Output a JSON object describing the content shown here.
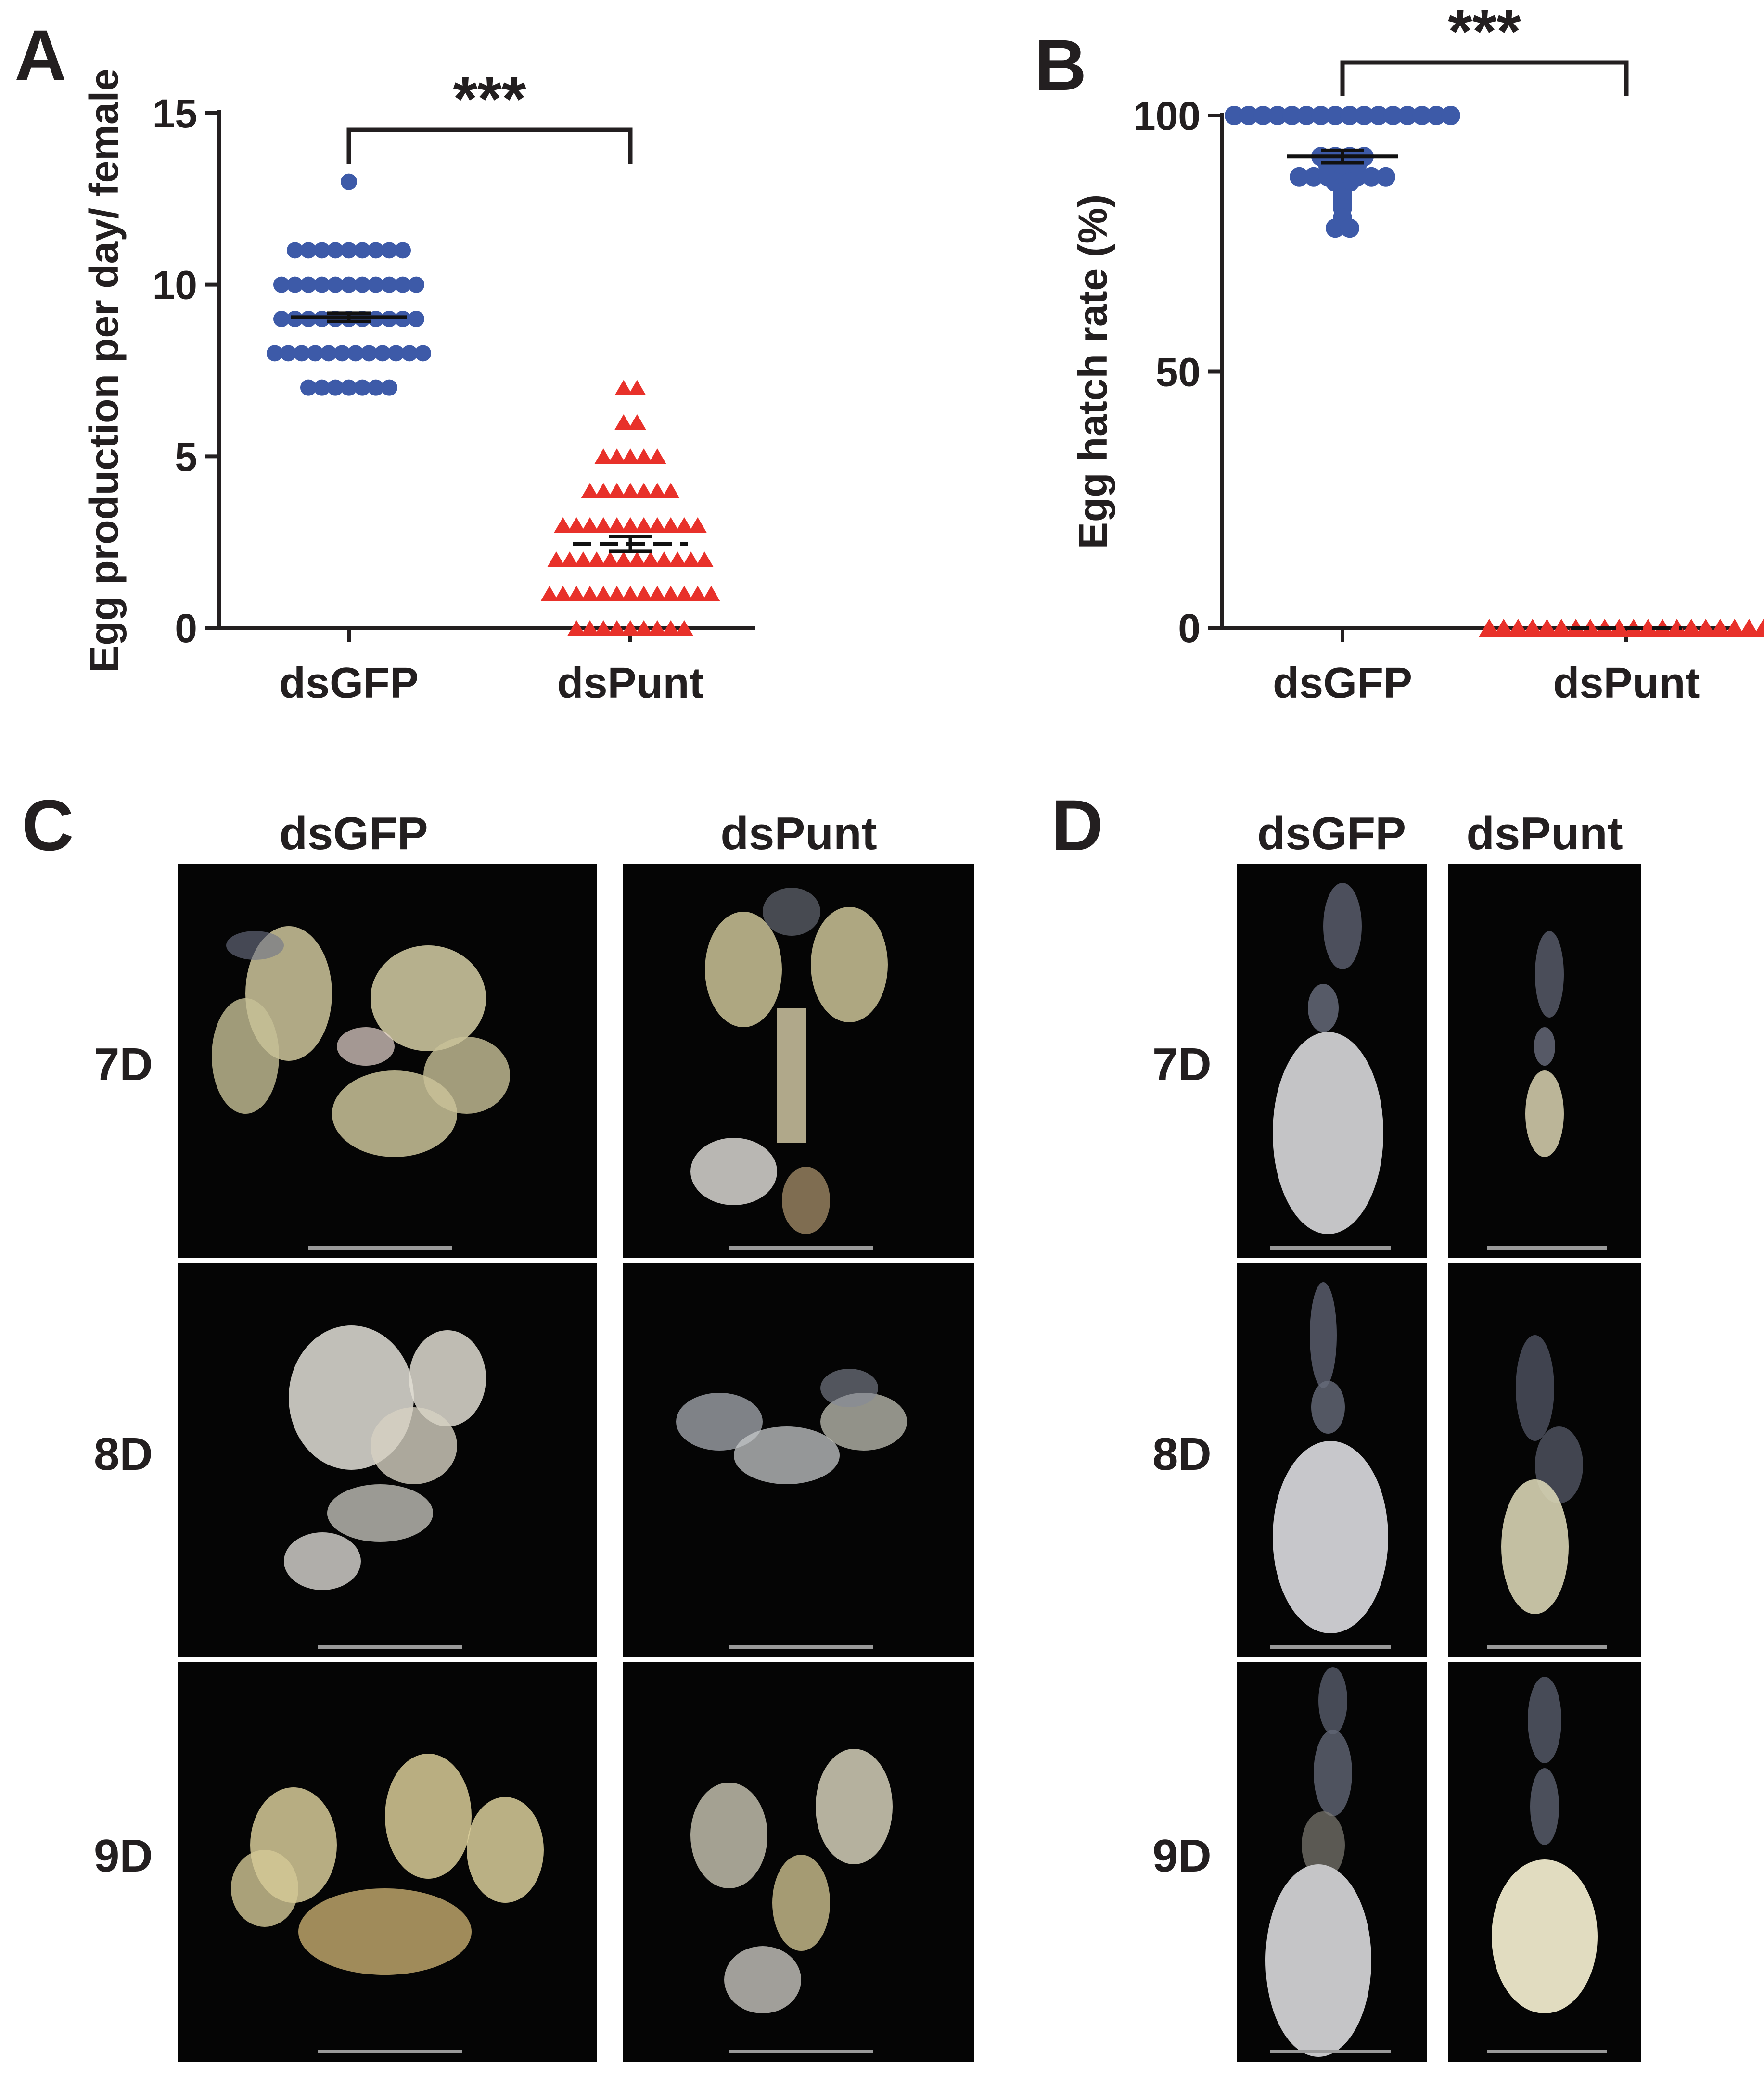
{
  "panels": {
    "a": "A",
    "b": "B",
    "c": "C",
    "d": "D"
  },
  "chart_data": [
    {
      "type": "scatter",
      "panel": "A",
      "ylabel": "Egg production per day/ female",
      "xlabel": "",
      "categories": [
        "dsGFP",
        "dsPunt"
      ],
      "ylim": [
        0,
        15
      ],
      "yticks": [
        0,
        5,
        10,
        15
      ],
      "significance": "***",
      "series": [
        {
          "category": "dsGFP",
          "marker": "circle",
          "color": "#3d5aa8",
          "values": [
            13,
            11,
            11,
            11,
            11,
            11,
            11,
            11,
            11,
            11,
            10,
            10,
            10,
            10,
            10,
            10,
            10,
            10,
            10,
            10,
            10,
            9,
            9,
            9,
            9,
            9,
            9,
            9,
            9,
            9,
            9,
            9,
            8,
            8,
            8,
            8,
            8,
            8,
            8,
            8,
            8,
            8,
            8,
            8,
            7,
            7,
            7,
            7,
            7,
            7,
            7
          ],
          "mean": 9.05,
          "sem": 0.12
        },
        {
          "category": "dsPunt",
          "marker": "triangle",
          "color": "#e8312a",
          "values": [
            7,
            7,
            6,
            6,
            5,
            5,
            5,
            5,
            5,
            4,
            4,
            4,
            4,
            4,
            4,
            4,
            3,
            3,
            3,
            3,
            3,
            3,
            3,
            3,
            3,
            3,
            3,
            2,
            2,
            2,
            2,
            2,
            2,
            2,
            2,
            2,
            2,
            2,
            2,
            1,
            1,
            1,
            1,
            1,
            1,
            1,
            1,
            1,
            1,
            1,
            1,
            1,
            0,
            0,
            0,
            0,
            0,
            0,
            0,
            0,
            0
          ],
          "mean": 2.45,
          "sem": 0.22
        }
      ]
    },
    {
      "type": "scatter",
      "panel": "B",
      "ylabel": "Egg hatch rate (%)",
      "xlabel": "",
      "categories": [
        "dsGFP",
        "dsPunt"
      ],
      "ylim": [
        0,
        100
      ],
      "yticks": [
        0,
        50,
        100
      ],
      "significance": "***",
      "series": [
        {
          "category": "dsGFP",
          "marker": "circle",
          "color": "#3d5aa8",
          "values": [
            100,
            100,
            100,
            100,
            100,
            100,
            100,
            100,
            100,
            100,
            100,
            100,
            100,
            100,
            100,
            100,
            92,
            92,
            92,
            92,
            91,
            90,
            90,
            90,
            89,
            88,
            88,
            88,
            88,
            88,
            88,
            88,
            87,
            87,
            86,
            85,
            84,
            83,
            82,
            80,
            78,
            78
          ],
          "mean": 92,
          "sem": 1.2
        },
        {
          "category": "dsPunt",
          "marker": "triangle",
          "color": "#e8312a",
          "values": [
            0,
            0,
            0,
            0,
            0,
            0,
            0,
            0,
            0,
            0,
            0,
            0,
            0,
            0,
            0,
            0,
            0,
            0,
            0,
            0
          ],
          "mean": 0,
          "sem": 0
        }
      ]
    }
  ],
  "panel_c": {
    "columns": [
      "dsGFP",
      "dsPunt"
    ],
    "rows": [
      "7D",
      "8D",
      "9D"
    ]
  },
  "panel_d": {
    "columns": [
      "dsGFP",
      "dsPunt"
    ],
    "rows": [
      "7D",
      "8D",
      "9D"
    ]
  }
}
